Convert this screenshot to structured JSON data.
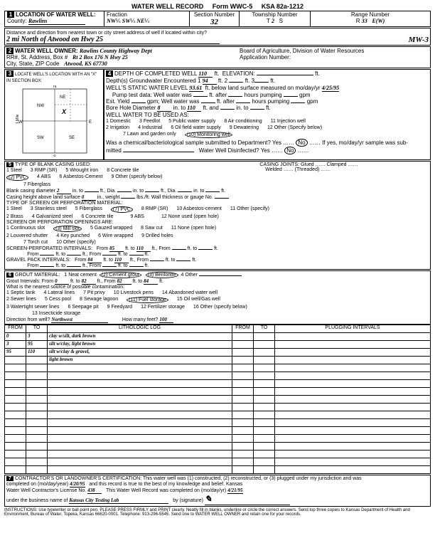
{
  "header": {
    "title": "WATER WELL RECORD",
    "form": "Form WWC-5",
    "ksa": "KSA 82a-1212"
  },
  "loc": {
    "county_label": "County:",
    "county": "Rawlins",
    "fraction_label": "Fraction",
    "frac1a": "NW",
    "frac1b": "¼",
    "frac2a": "SW",
    "frac2b": "¼",
    "frac3a": "NE",
    "frac3b": "¼",
    "section_label": "Section Number",
    "section": "32",
    "township_label": "Township Number",
    "township_t": "T",
    "township": "2",
    "township_s": "S",
    "range_label": "Range Number",
    "range_r": "R",
    "range": "33",
    "range_ew": "E(W)",
    "dist_label": "Distance and direction from nearest town or city street address of well if located within city?",
    "dist": "2 mi North of Atwood on Hwy 25",
    "wellid": "MW-3"
  },
  "owner": {
    "label": "WATER WELL OWNER:",
    "name": "Rawlins County Highway Dept",
    "addr_label": "RR#, St. Address, Box #",
    "addr": "Rt 2 Box 176 N Hwy 25",
    "city_label": "City, State, ZIP Code",
    "city": "Atwood, KS 67730",
    "board": "Board of Agriculture, Division of Water Resources",
    "app_label": "Application Number:"
  },
  "sec3": {
    "label": "LOCATE WELL'S LOCATION WITH AN \"X\" IN SECTION BOX:"
  },
  "sec4": {
    "depth_label": "DEPTH OF COMPLETED WELL",
    "depth": "110",
    "ft": "ft.",
    "elev_label": "ELEVATION:",
    "gw_label": "Depth(s) Groundwater Encountered",
    "gw1": "1",
    "gw1v": "94",
    "gw2": "ft.  2",
    "gw3": "ft.  3",
    "swl_label": "WELL'S STATIC WATER LEVEL",
    "swl": "93.61",
    "swl_after": "ft. below land surface measured on mo/day/yr",
    "swl_date": "4/25/95",
    "pump_label": "Pump test data:  Well water was",
    "after": "ft. after",
    "hours": "hours pumping",
    "gpm": "gpm",
    "yield_label": "Est. Yield",
    "yield_gpm": "gpm;  Well water was",
    "bore_label": "Bore Hole Diameter",
    "bore1": "8",
    "into": "in. to",
    "bore2": "110",
    "ftand": "ft. and",
    "into2": "in. to",
    "ft2": "ft.",
    "use_label": "WELL WATER TO BE USED AS:",
    "use1": "1 Domestic",
    "use2": "2 Irrigation",
    "use3": "3 Feedlot",
    "use4": "4 Industrial",
    "use5": "5 Public water supply",
    "use6": "6 Oil field water supply",
    "use7": "7 Lawn and garden only",
    "use8": "8 Air conditioning",
    "use9": "9 Dewatering",
    "use10": "(10) Monitoring well",
    "use11": "11 Injection well",
    "use12": "12 Other (Specify below)",
    "chem_label": "Was a chemical/bacteriological sample submitted to Department? Yes",
    "chem_no": "No",
    "chem_if": "If yes, mo/day/yr sample was sub-",
    "mitted": "mitted",
    "disinfect": "Water Well Disinfected?  Yes",
    "disinfect_no": "No"
  },
  "sec5": {
    "label": "TYPE OF BLANK CASING USED:",
    "c1": "1 Steel",
    "c2": "(2) PVC",
    "c3": "3 RMP (SR)",
    "c4": "4 ABS",
    "c5": "5 Wrought iron",
    "c6": "6 Asbestos-Cement",
    "c7": "7 Fiberglass",
    "c8": "8 Concrete tile",
    "c9": "9 Other (specify below)",
    "joints": "CASING JOINTS: Glued …… Clamped ……",
    "joints2": "Welded …… (Threaded) ……",
    "blank_dia_label": "Blank casing diameter",
    "blank_dia": "2",
    "into": "in. to",
    "ftdia": "ft., Dia.",
    "height_label": "Casing height above land surface",
    "height": "0",
    "inweight": "in., weight",
    "lbsft": "lbs./ft. Wall thickness or gauge No.",
    "perf_label": "TYPE OF SCREEN OR PERFORATION MATERIAL:",
    "p1": "1 Steel",
    "p2": "2 Brass",
    "p3": "3 Stainless steel",
    "p4": "4 Galvanized steel",
    "p5": "5 Fiberglass",
    "p6": "6 Concrete tile",
    "p7": "(7) PVC",
    "p8": "8 RMP (SR)",
    "p9": "9 ABS",
    "p10": "10 Asbestos-cement",
    "p11": "11 Other (specify)",
    "p12": "12 None used (open hole)",
    "open_label": "SCREEN OR PERFORATION OPENINGS ARE:",
    "o1": "1 Continuous slot",
    "o2": "2 Louvered shutter",
    "o3": "(3) Mill slot",
    "o4": "4 Key punched",
    "o5": "5 Gauzed wrapped",
    "o6": "6 Wire wrapped",
    "o7": "7 Torch cut",
    "o8": "8 Saw cut",
    "o9": "9 Drilled holes",
    "o10": "10 Other (specify)",
    "o11": "11 None (open hole)",
    "screen_label": "SCREEN-PERFORATED INTERVALS:",
    "from": "From",
    "to": "ft. to",
    "ftfrom": "ft., From",
    "ftto": "ft. to",
    "ft": "ft.",
    "sp_from1": "85",
    "sp_to1": "110",
    "gravel_label": "GRAVEL PACK INTERVALS:",
    "gp_from1": "84",
    "gp_to1": "110"
  },
  "sec6": {
    "label": "GROUT MATERIAL:",
    "g1": "1 Neat cement",
    "g2": "(2) Cement grout",
    "g3": "(3) Bentonite",
    "g4": "4 Other",
    "gi_label": "Grout Intervals:  From",
    "gi_from1": "0",
    "ftto": "ft. to",
    "gi_to1": "82",
    "ftfrom": "ft., From",
    "gi_from2": "82",
    "gi_to2": "84",
    "ft": "ft.",
    "contam_label": "What is the nearest source of possible contamination:",
    "c1": "1 Septic tank",
    "c2": "2 Sewer lines",
    "c3": "3 Watertight sewer lines",
    "c4": "4 Lateral lines",
    "c5": "5 Cess pool",
    "c6": "6 Seepage pit",
    "c7": "7 Pit privy",
    "c8": "8 Sewage lagoon",
    "c9": "9 Feedyard",
    "c10": "10 Livestock pens",
    "c11": "(11) Fuel storage",
    "c12": "12 Fertilizer storage",
    "c13": "13 Insecticide storage",
    "c14": "14 Abandoned water well",
    "c15": "15 Oil well/Gas well",
    "c16": "16 Other (specify below)",
    "dir_label": "Direction from well?",
    "dir": "Northwest",
    "feet_label": "How many feet?",
    "feet": "100"
  },
  "log": {
    "h_from": "FROM",
    "h_to": "TO",
    "h_lith": "LITHOLOGIC LOG",
    "h_from2": "FROM",
    "h_to2": "TO",
    "h_plug": "PLUGGING INTERVALS",
    "rows": [
      {
        "from": "0",
        "to": "3",
        "lith": "clay w/silt, dark brown"
      },
      {
        "from": "3",
        "to": "95",
        "lith": "silt w/clay, light brown"
      },
      {
        "from": "95",
        "to": "110",
        "lith": "silt w/clay & gravel,"
      },
      {
        "from": "",
        "to": "",
        "lith": "light brown"
      }
    ]
  },
  "sec7": {
    "cert": "CONTRACTOR'S OR LANDOWNER'S CERTIFICATION: This water well was (1) constructed, (2) reconstructed, or (3) plugged under my jurisdiction and was",
    "completed": "completed on (mo/day/year)",
    "date": "4/20/95",
    "cert2": "and this record is true to the best of my knowledge and belief. Kansas",
    "lic_label": "Water Well Contractor's License No.",
    "lic": "438",
    "rec_label": "This Water Well Record was completed on (mo/day/yr)",
    "rec_date": "4/21/95",
    "bus_label": "under the business name of",
    "bus": "Kansas City Testing Lab",
    "sig_label": "by (signature)"
  },
  "footer": "INSTRUCTIONS: Use typewriter or ball point pen. PLEASE PRESS FIRMLY and PRINT clearly. Neatly fill in blanks, underline or circle the correct answers. Send top three copies to Kansas Department of Health and Environment, Bureau of Water, Topeka, Kansas 66620-0001. Telephone: 913-296-5545. Send one to WATER WELL OWNER and retain one for your records."
}
